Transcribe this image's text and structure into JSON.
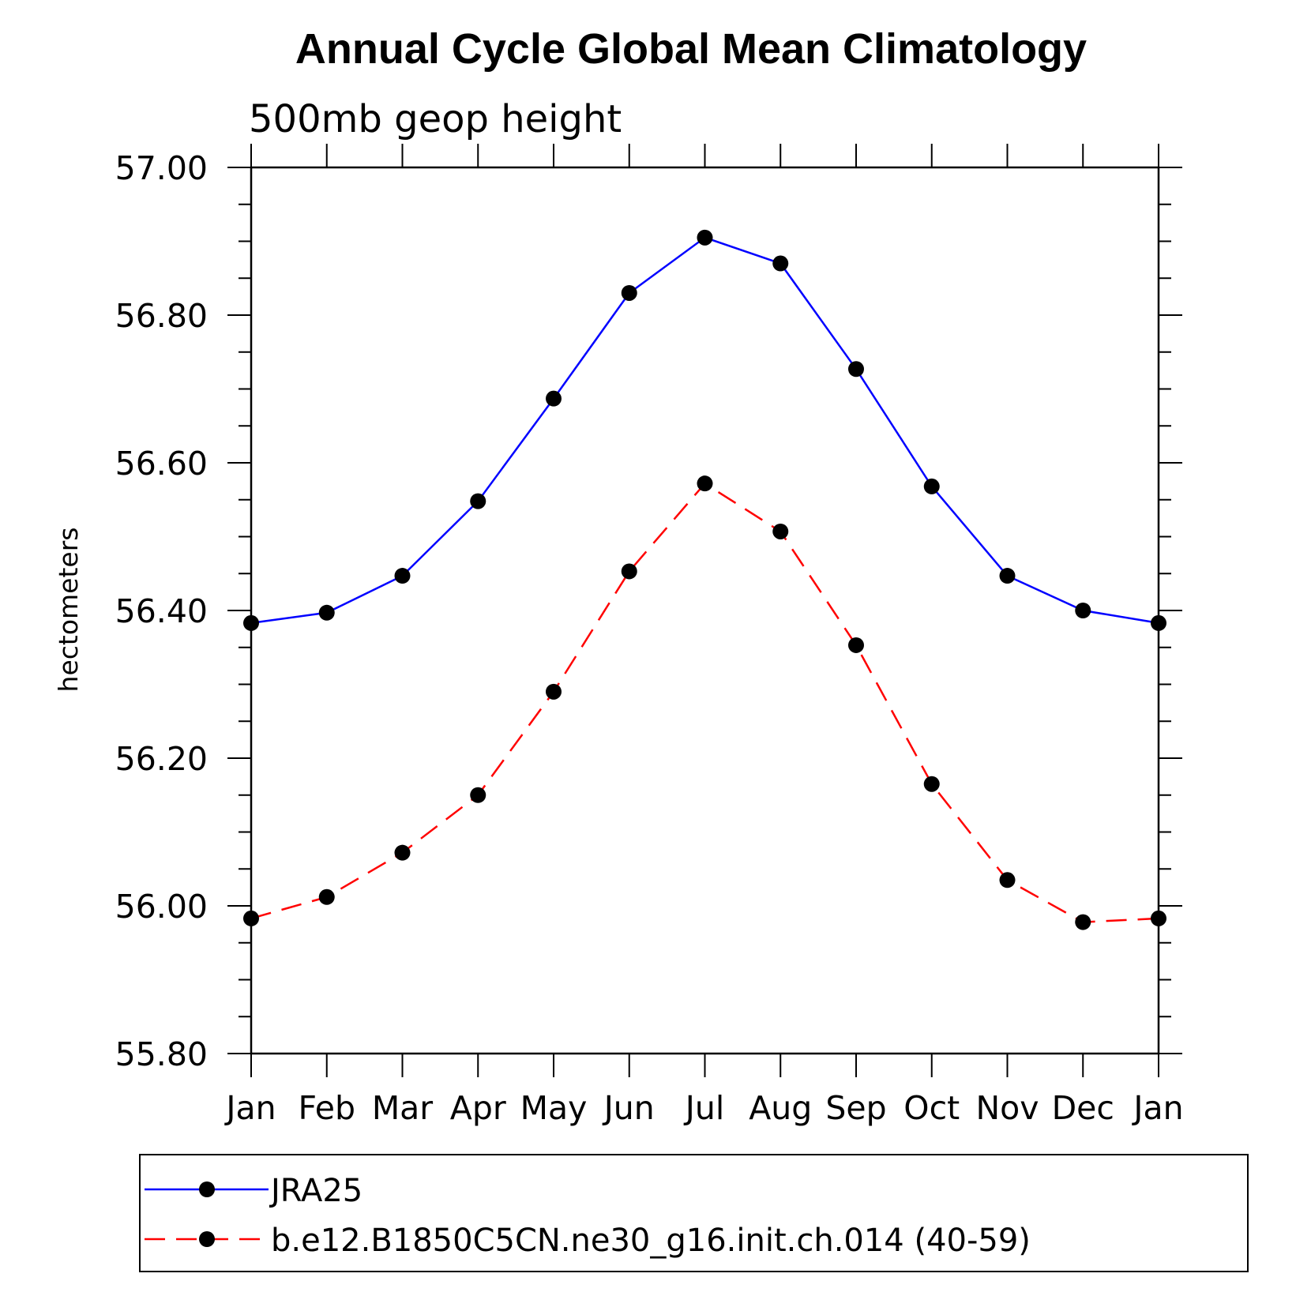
{
  "chart_data": {
    "type": "line",
    "title": "Annual Cycle Global Mean Climatology",
    "subtitle": "500mb geop height",
    "xlabel": "",
    "ylabel": "hectometers",
    "categories": [
      "Jan",
      "Feb",
      "Mar",
      "Apr",
      "May",
      "Jun",
      "Jul",
      "Aug",
      "Sep",
      "Oct",
      "Nov",
      "Dec",
      "Jan"
    ],
    "ylim": [
      55.8,
      57.0
    ],
    "yticks": [
      55.8,
      56.0,
      56.2,
      56.4,
      56.6,
      56.8,
      57.0
    ],
    "ytick_labels": [
      "55.80",
      "56.00",
      "56.20",
      "56.40",
      "56.60",
      "56.80",
      "57.00"
    ],
    "grid": false,
    "legend_position": "bottom",
    "series": [
      {
        "name": "JRA25",
        "color": "#0000ff",
        "dash": "solid",
        "marker": "filled-circle",
        "values": [
          56.383,
          56.397,
          56.447,
          56.548,
          56.687,
          56.83,
          56.905,
          56.87,
          56.727,
          56.568,
          56.447,
          56.4,
          56.383
        ]
      },
      {
        "name": "b.e12.B1850C5CN.ne30_g16.init.ch.014 (40-59)",
        "color": "#ff0000",
        "dash": "dashed",
        "marker": "filled-circle",
        "values": [
          55.983,
          56.012,
          56.072,
          56.15,
          56.29,
          56.453,
          56.572,
          56.507,
          56.353,
          56.165,
          56.035,
          55.978,
          55.983
        ]
      }
    ]
  }
}
